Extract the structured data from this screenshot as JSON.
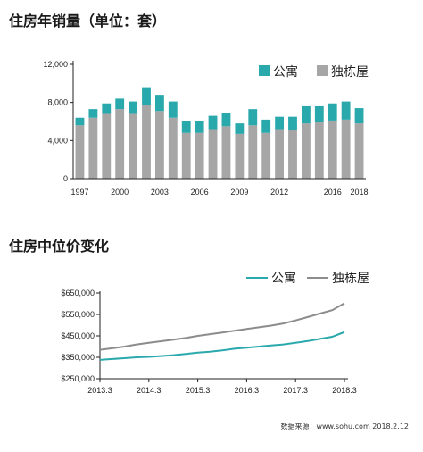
{
  "title_sales": "住房年销量（单位：套）",
  "title_price": "住房中位价变化",
  "source": "数据来源：www.sohu.com 2018.2.12",
  "colors": {
    "apartment_bar": "#2aa9ad",
    "house_bar": "#a6a6a6",
    "apartment_line": "#2aa9ad",
    "house_line": "#8c8c8c",
    "axis": "#222222"
  },
  "chart_data": [
    {
      "type": "bar",
      "stacked": true,
      "categories": [
        "1997",
        "1998",
        "1999",
        "2000",
        "2001",
        "2002",
        "2003",
        "2004",
        "2005",
        "2006",
        "2007",
        "2008",
        "2009",
        "2010",
        "2011",
        "2012",
        "2013",
        "2014",
        "2015",
        "2016",
        "2017",
        "2018"
      ],
      "x_tick_labels": [
        "1997",
        "2000",
        "2003",
        "2006",
        "2009",
        "2012",
        "2016",
        "2018"
      ],
      "x_tick_categories": [
        "1997",
        "2000",
        "2003",
        "2006",
        "2009",
        "2012",
        "2016",
        "2018"
      ],
      "series": [
        {
          "name": "独栋屋",
          "values": [
            5600,
            6400,
            6800,
            7300,
            6800,
            7700,
            7100,
            6400,
            4800,
            4800,
            5200,
            5500,
            4700,
            5600,
            4800,
            5200,
            5100,
            5800,
            5900,
            6100,
            6200,
            5800
          ]
        },
        {
          "name": "公寓",
          "values": [
            800,
            900,
            1100,
            1100,
            1300,
            1900,
            1700,
            1700,
            1200,
            1200,
            1400,
            1400,
            1100,
            1700,
            1400,
            1300,
            1400,
            1800,
            1700,
            1800,
            1900,
            1600
          ]
        }
      ],
      "y_ticks": [
        "0",
        "4,000",
        "8,000",
        "12,000"
      ],
      "ylim": [
        0,
        12000
      ],
      "legend": [
        "公寓",
        "独栋屋"
      ]
    },
    {
      "type": "line",
      "x_tick_labels": [
        "2013.3",
        "2014.3",
        "2015.3",
        "2016.3",
        "2017.3",
        "2018.3"
      ],
      "x_range": [
        "2013.3",
        "2018.3"
      ],
      "y_ticks": [
        "$250,000",
        "$350,000",
        "$450,000",
        "$550,000",
        "$650,000"
      ],
      "ylim": [
        250000,
        650000
      ],
      "legend": [
        "公寓",
        "独栋屋"
      ],
      "series": [
        {
          "name": "公寓",
          "points": [
            [
              "2013.3",
              338000
            ],
            [
              "2013.6",
              342000
            ],
            [
              "2013.9",
              346000
            ],
            [
              "2013.12",
              350000
            ],
            [
              "2014.3",
              352000
            ],
            [
              "2014.6",
              356000
            ],
            [
              "2014.9",
              360000
            ],
            [
              "2014.12",
              366000
            ],
            [
              "2015.3",
              372000
            ],
            [
              "2015.6",
              376000
            ],
            [
              "2015.9",
              382000
            ],
            [
              "2015.12",
              390000
            ],
            [
              "2016.3",
              395000
            ],
            [
              "2016.6",
              400000
            ],
            [
              "2016.9",
              405000
            ],
            [
              "2016.12",
              410000
            ],
            [
              "2017.3",
              418000
            ],
            [
              "2017.6",
              426000
            ],
            [
              "2017.9",
              436000
            ],
            [
              "2017.12",
              446000
            ],
            [
              "2018.3",
              468000
            ]
          ]
        },
        {
          "name": "独栋屋",
          "points": [
            [
              "2013.3",
              385000
            ],
            [
              "2013.6",
              392000
            ],
            [
              "2013.9",
              400000
            ],
            [
              "2013.12",
              410000
            ],
            [
              "2014.3",
              418000
            ],
            [
              "2014.6",
              425000
            ],
            [
              "2014.9",
              432000
            ],
            [
              "2014.12",
              440000
            ],
            [
              "2015.3",
              450000
            ],
            [
              "2015.6",
              458000
            ],
            [
              "2015.9",
              466000
            ],
            [
              "2015.12",
              474000
            ],
            [
              "2016.3",
              482000
            ],
            [
              "2016.6",
              490000
            ],
            [
              "2016.9",
              498000
            ],
            [
              "2016.12",
              508000
            ],
            [
              "2017.3",
              522000
            ],
            [
              "2017.6",
              538000
            ],
            [
              "2017.9",
              554000
            ],
            [
              "2017.12",
              570000
            ],
            [
              "2018.3",
              602000
            ]
          ]
        }
      ]
    }
  ]
}
